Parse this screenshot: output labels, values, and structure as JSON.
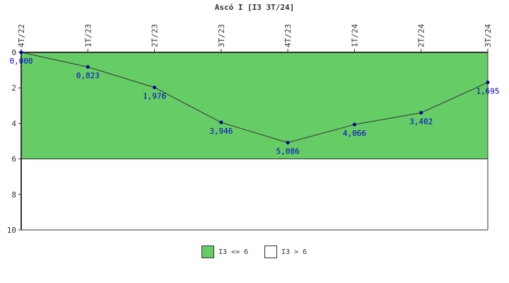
{
  "title": "Ascó I [I3 3T/24]",
  "colors": {
    "green_band": "#66CC66",
    "white_band": "#FFFFFF",
    "line": "#333333",
    "point": "#000099",
    "label": "#0000CC",
    "axis": "#333333"
  },
  "legend": [
    {
      "label": "I3 <= 6",
      "color": "#66CC66"
    },
    {
      "label": "I3 > 6",
      "color": "#FFFFFF"
    }
  ],
  "chart_data": {
    "type": "line",
    "title": "Ascó I [I3 3T/24]",
    "categories": [
      "4T/22",
      "1T/23",
      "2T/23",
      "3T/23",
      "4T/23",
      "1T/24",
      "2T/24",
      "3T/24"
    ],
    "values": [
      0.0,
      0.823,
      1.976,
      3.946,
      5.086,
      4.066,
      3.402,
      1.695
    ],
    "value_labels": [
      "0,000",
      "0,823",
      "1,976",
      "3,946",
      "5,086",
      "4,066",
      "3,402",
      "1,695"
    ],
    "yticks": [
      "0",
      "2",
      "4",
      "6",
      "8",
      "10"
    ],
    "ylim": [
      0,
      10
    ],
    "y_inverted": true,
    "threshold": 6,
    "grid": false,
    "legend_position": "bottom"
  }
}
